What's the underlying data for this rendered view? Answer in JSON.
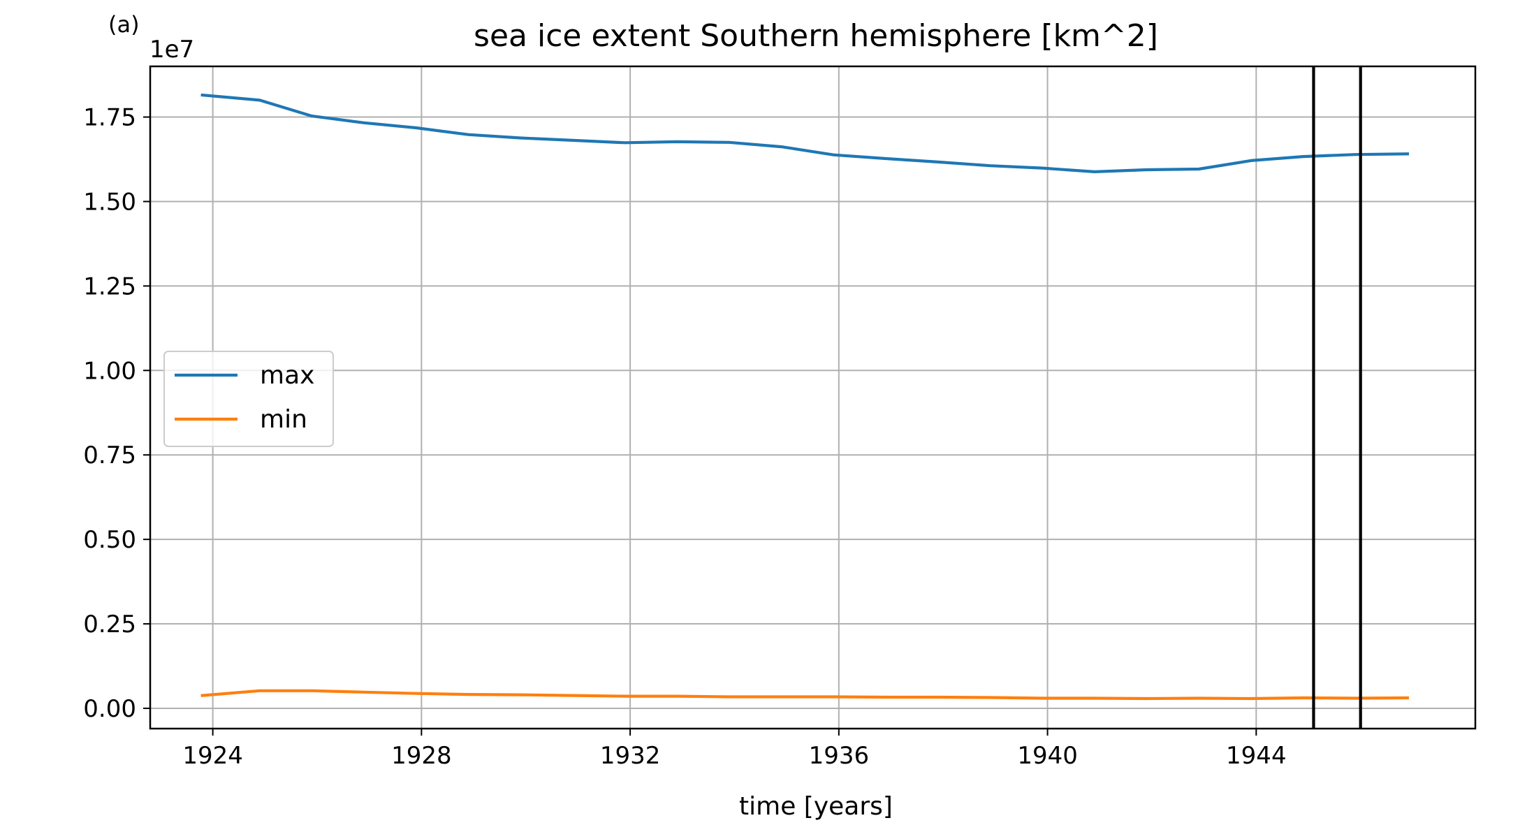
{
  "panel_label": "(a)",
  "chart_data": {
    "type": "line",
    "title": "sea ice extent Southern hemisphere [km^2]",
    "xlabel": "time [years]",
    "ylabel": "",
    "y_offset_label": "1e7",
    "xlim": [
      1922.8,
      1948.2
    ],
    "ylim": [
      -0.06,
      1.9
    ],
    "x_ticks": [
      1924,
      1928,
      1932,
      1936,
      1940,
      1944
    ],
    "x_tick_labels": [
      "1924",
      "1928",
      "1932",
      "1936",
      "1940",
      "1944"
    ],
    "y_ticks": [
      0.0,
      0.25,
      0.5,
      0.75,
      1.0,
      1.25,
      1.5,
      1.75
    ],
    "y_tick_labels": [
      "0.00",
      "0.25",
      "0.50",
      "0.75",
      "1.00",
      "1.25",
      "1.50",
      "1.75"
    ],
    "grid": true,
    "legend_position": "center-left",
    "x": [
      1923.8,
      1924.9,
      1925.9,
      1926.9,
      1927.9,
      1928.9,
      1929.9,
      1930.9,
      1931.9,
      1932.9,
      1933.9,
      1934.9,
      1935.9,
      1936.9,
      1937.9,
      1938.9,
      1939.9,
      1940.9,
      1941.9,
      1942.9,
      1943.9,
      1944.9,
      1945.9,
      1946.9
    ],
    "series": [
      {
        "name": "max",
        "color": "#1f77b4",
        "values": [
          1.815,
          1.8,
          1.753,
          1.733,
          1.718,
          1.698,
          1.688,
          1.681,
          1.674,
          1.677,
          1.675,
          1.662,
          1.638,
          1.627,
          1.617,
          1.606,
          1.599,
          1.588,
          1.594,
          1.596,
          1.621,
          1.633,
          1.639,
          1.641
        ]
      },
      {
        "name": "min",
        "color": "#ff7f0e",
        "values": [
          0.038,
          0.052,
          0.052,
          0.048,
          0.044,
          0.041,
          0.04,
          0.038,
          0.036,
          0.036,
          0.034,
          0.034,
          0.034,
          0.033,
          0.033,
          0.032,
          0.03,
          0.03,
          0.029,
          0.03,
          0.029,
          0.031,
          0.03,
          0.031
        ]
      }
    ],
    "vertical_lines": [
      {
        "x": 1945.1,
        "color": "#000000"
      },
      {
        "x": 1946.0,
        "color": "#000000"
      }
    ]
  }
}
